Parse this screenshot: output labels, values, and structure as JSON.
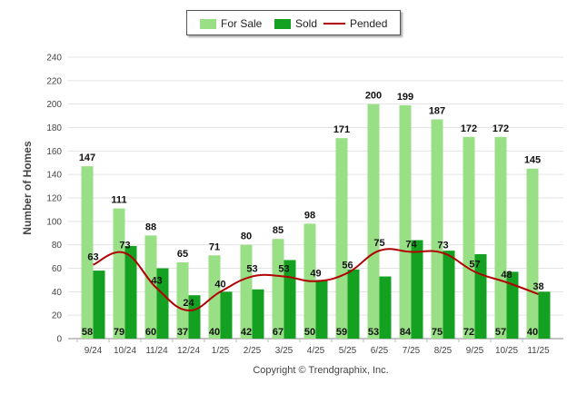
{
  "chart_data": {
    "type": "bar",
    "ylabel": "Number of Homes",
    "ylim": [
      0,
      240
    ],
    "yticks": [
      0,
      20,
      40,
      60,
      80,
      100,
      120,
      140,
      160,
      180,
      200,
      220,
      240
    ],
    "categories": [
      "9/24",
      "10/24",
      "11/24",
      "12/24",
      "1/25",
      "2/25",
      "3/25",
      "4/25",
      "5/25",
      "6/25",
      "7/25",
      "8/25",
      "9/25",
      "10/25",
      "11/25"
    ],
    "series": [
      {
        "name": "For Sale",
        "kind": "bar",
        "color": "#99df86",
        "values": [
          147,
          111,
          88,
          65,
          71,
          80,
          85,
          98,
          171,
          200,
          199,
          187,
          172,
          172,
          145
        ]
      },
      {
        "name": "Sold",
        "kind": "bar",
        "color": "#14a020",
        "values": [
          58,
          79,
          60,
          37,
          40,
          42,
          67,
          50,
          59,
          53,
          84,
          75,
          72,
          57,
          40
        ]
      },
      {
        "name": "Pended",
        "kind": "line",
        "color": "#b00000",
        "values": [
          63,
          73,
          43,
          24,
          40,
          53,
          53,
          49,
          56,
          75,
          74,
          73,
          57,
          48,
          38
        ]
      }
    ],
    "legend": "top-center",
    "copyright": "Copyright © Trendgraphix, Inc."
  }
}
